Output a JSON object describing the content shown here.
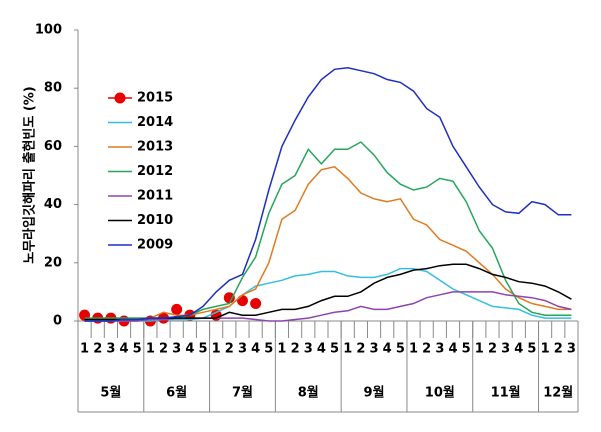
{
  "chart_data": {
    "type": "line",
    "y_label": "노무라입깃해파리 출현빈도 (%)",
    "categories": [
      "1",
      "2",
      "3",
      "4",
      "5",
      "1",
      "2",
      "3",
      "4",
      "5",
      "1",
      "2",
      "3",
      "4",
      "5",
      "1",
      "2",
      "3",
      "4",
      "5",
      "1",
      "2",
      "3",
      "4",
      "5",
      "1",
      "2",
      "3",
      "4",
      "5",
      "1",
      "2",
      "3",
      "4",
      "5",
      "1",
      "2",
      "3"
    ],
    "groups": [
      "5월",
      "6월",
      "7월",
      "8월",
      "9월",
      "10월",
      "11월",
      "12월"
    ],
    "ylim": [
      0,
      100
    ],
    "yticks": [
      0,
      20,
      40,
      60,
      80,
      100
    ],
    "grid": false,
    "legend": "upper left",
    "series": [
      {
        "name": "2015",
        "color": "#e60000",
        "marker": true,
        "values": [
          2,
          1,
          1,
          0,
          null,
          0,
          1,
          4,
          2,
          null,
          2,
          8,
          7,
          6,
          null,
          null,
          null,
          null,
          null,
          null,
          null,
          null,
          null,
          null,
          null,
          null,
          null,
          null,
          null,
          null,
          null,
          null,
          null,
          null,
          null,
          null,
          null,
          null
        ]
      },
      {
        "name": "2014",
        "color": "#33c0e0",
        "values": [
          0,
          0,
          0,
          0,
          0,
          0,
          0.5,
          0.5,
          0.5,
          1,
          3,
          5,
          9,
          12,
          13,
          14,
          15.5,
          16,
          17,
          17,
          15.5,
          15,
          15,
          16,
          18,
          18,
          17,
          14,
          11,
          9,
          7,
          5,
          4.5,
          4,
          2,
          1,
          1,
          1
        ]
      },
      {
        "name": "2013",
        "color": "#e07b22",
        "values": [
          0.5,
          1,
          1,
          1,
          1,
          1,
          3,
          2,
          2,
          3,
          4,
          5,
          9,
          11,
          20,
          35,
          38,
          47,
          52,
          53,
          49,
          44,
          42,
          41,
          42,
          35,
          33,
          28,
          26,
          24,
          20,
          16,
          11,
          8,
          6,
          5,
          4,
          4
        ]
      },
      {
        "name": "2012",
        "color": "#26a65b",
        "values": [
          1,
          1,
          1,
          1,
          1,
          1,
          1,
          1,
          2,
          4,
          5,
          6,
          15,
          22,
          37,
          47,
          50,
          59,
          54,
          59,
          59,
          61.5,
          57,
          51,
          47,
          45,
          46,
          49,
          48,
          41,
          31,
          25,
          14,
          6,
          3,
          2,
          2,
          2
        ]
      },
      {
        "name": "2011",
        "color": "#8e44ad",
        "values": [
          0,
          0,
          0,
          0,
          0,
          0.5,
          0.5,
          1,
          1,
          1,
          1,
          1,
          1,
          0.5,
          0,
          0,
          0.5,
          1,
          2,
          3,
          3.5,
          5,
          4,
          4,
          5,
          6,
          8,
          9,
          10,
          10,
          10,
          10,
          9,
          8.5,
          8,
          7,
          5,
          4
        ]
      },
      {
        "name": "2010",
        "color": "#000000",
        "values": [
          0.5,
          0.5,
          0.5,
          0.5,
          0.5,
          1,
          1,
          1,
          1,
          1,
          1,
          3,
          2,
          2,
          3,
          4,
          4,
          5,
          7,
          8.5,
          8.5,
          10,
          13,
          15,
          16,
          17.5,
          18,
          19,
          19.5,
          19.5,
          18,
          16,
          15,
          13.5,
          13,
          12,
          10,
          7.5
        ]
      },
      {
        "name": "2009",
        "color": "#1f2fbf",
        "values": [
          0,
          0,
          0,
          0.5,
          0.5,
          1,
          1,
          1.5,
          2,
          5,
          10,
          14,
          16,
          28,
          45,
          60,
          69,
          77,
          83,
          86.5,
          87,
          86,
          85,
          83,
          82,
          79,
          73,
          70,
          60,
          53,
          46,
          40,
          37.5,
          37,
          41,
          40,
          36.5,
          36.5
        ]
      }
    ]
  }
}
